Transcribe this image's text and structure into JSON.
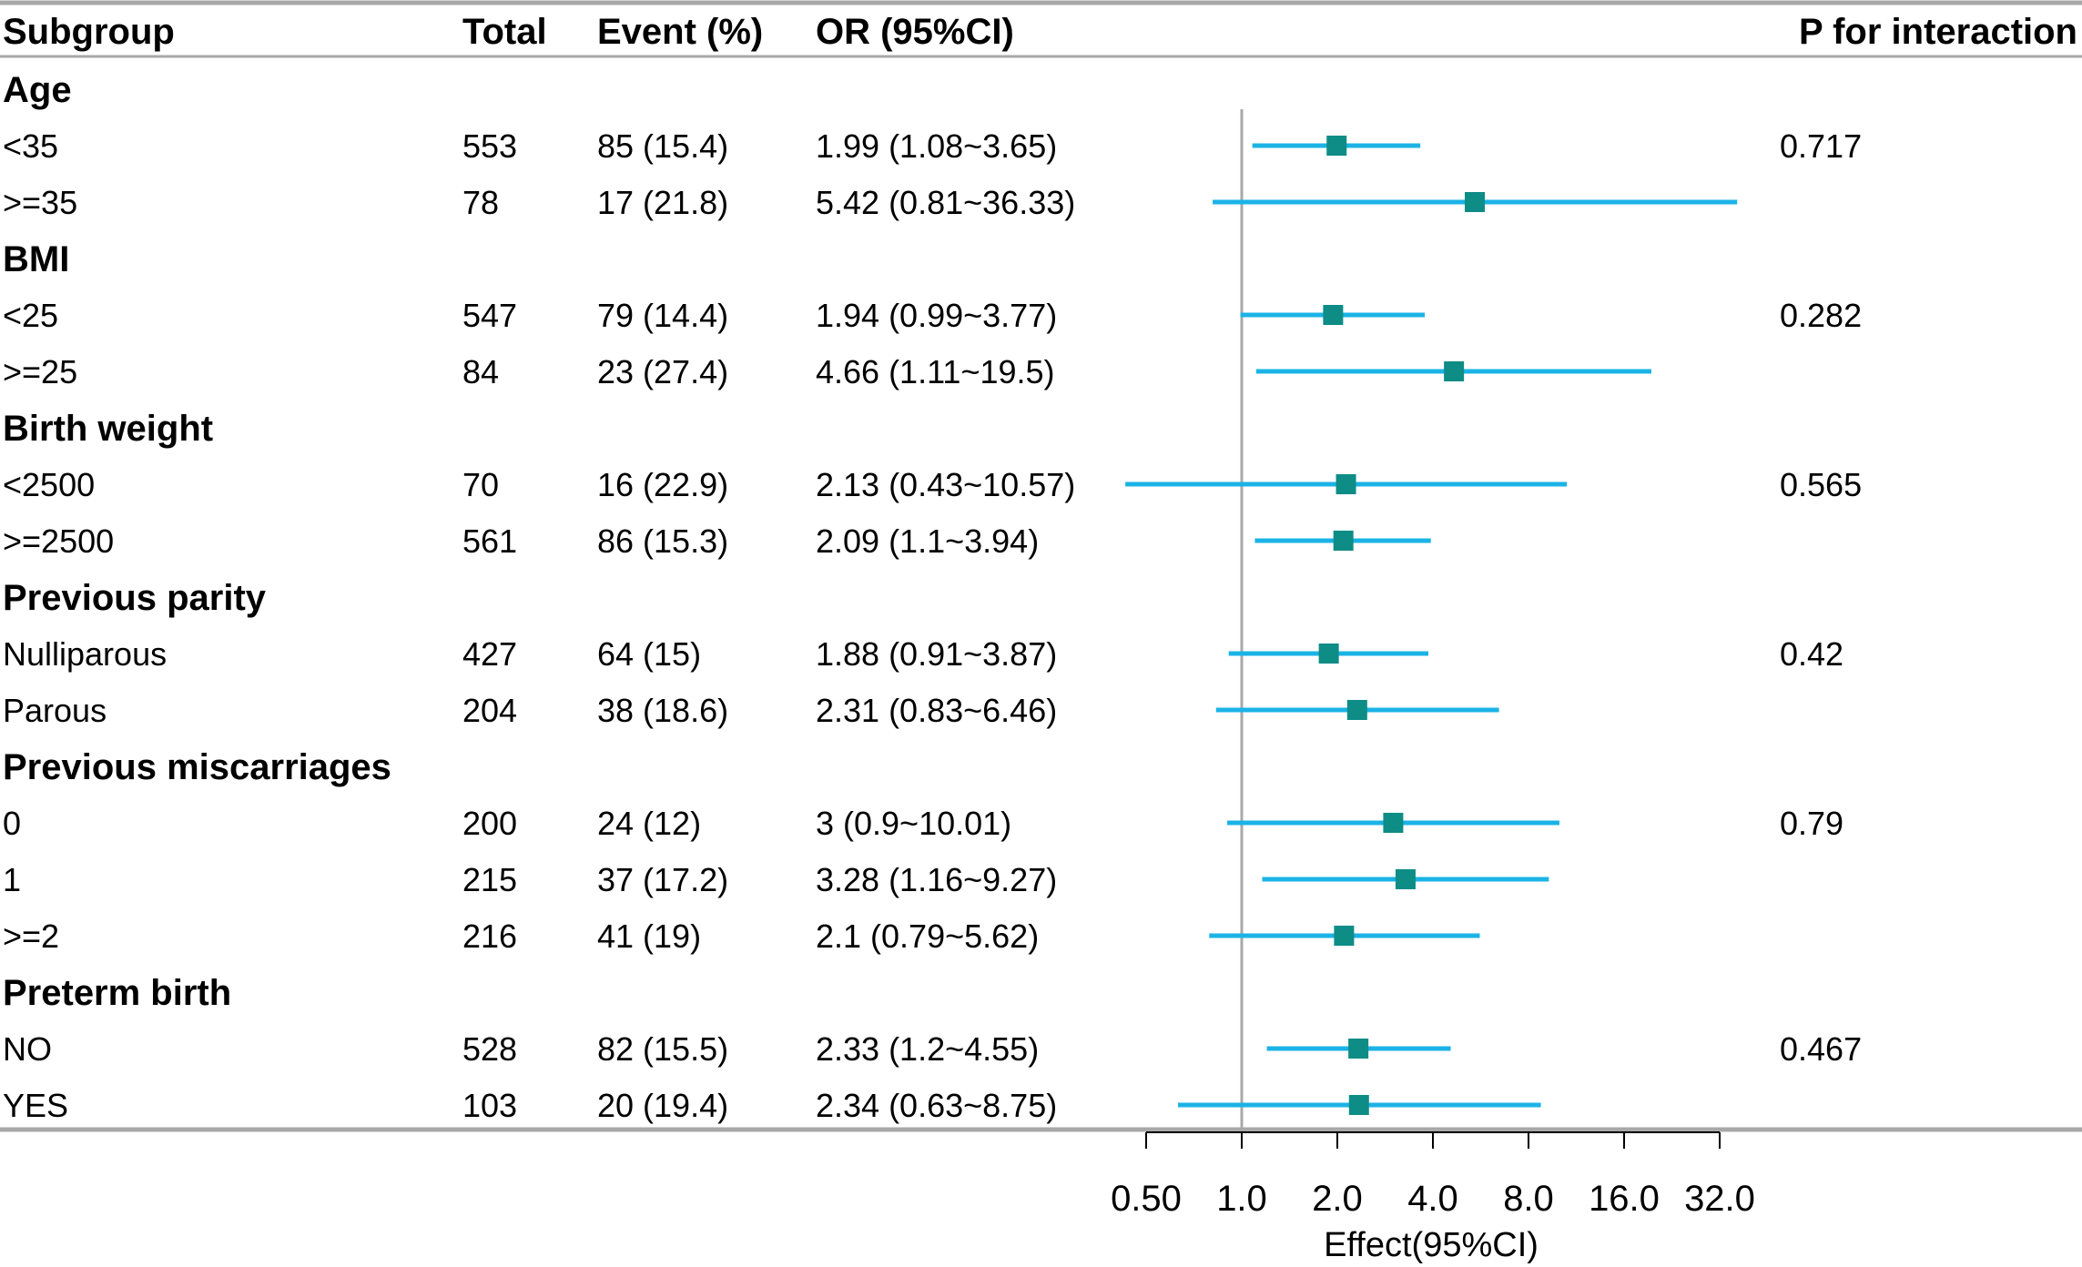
{
  "chart_data": {
    "type": "forest",
    "columns": [
      "Subgroup",
      "Total",
      "Event (%)",
      "OR (95%CI)",
      "P for interaction"
    ],
    "xlabel": "Effect(95%CI)",
    "x_scale": "log2",
    "xlim": [
      0.5,
      32
    ],
    "x_ticks": [
      0.5,
      1,
      2,
      4,
      8,
      16,
      32
    ],
    "x_tick_labels": [
      "0.50",
      "1.0",
      "2.0",
      "4.0",
      "8.0",
      "16.0",
      "32.0"
    ],
    "reference_line": 1,
    "colors": {
      "ci_line": "#1BB3E6",
      "point": "#0E8C86",
      "reference": "#A8A8A8",
      "rule": "#A8A8A8"
    },
    "groups": [
      {
        "label": "Age",
        "p_interaction": "0.717",
        "rows": [
          {
            "label": "<35",
            "total": "553",
            "event": "85 (15.4)",
            "or_text": "1.99 (1.08~3.65)",
            "or": 1.99,
            "lower": 1.08,
            "upper": 3.65
          },
          {
            "label": ">=35",
            "total": "78",
            "event": "17 (21.8)",
            "or_text": "5.42 (0.81~36.33)",
            "or": 5.42,
            "lower": 0.81,
            "upper": 36.33
          }
        ]
      },
      {
        "label": "BMI",
        "p_interaction": "0.282",
        "rows": [
          {
            "label": "<25",
            "total": "547",
            "event": "79 (14.4)",
            "or_text": "1.94 (0.99~3.77)",
            "or": 1.94,
            "lower": 0.99,
            "upper": 3.77
          },
          {
            "label": ">=25",
            "total": "84",
            "event": "23 (27.4)",
            "or_text": "4.66 (1.11~19.5)",
            "or": 4.66,
            "lower": 1.11,
            "upper": 19.5
          }
        ]
      },
      {
        "label": "Birth weight",
        "p_interaction": "0.565",
        "rows": [
          {
            "label": "<2500",
            "total": "70",
            "event": "16 (22.9)",
            "or_text": "2.13 (0.43~10.57)",
            "or": 2.13,
            "lower": 0.43,
            "upper": 10.57
          },
          {
            "label": ">=2500",
            "total": "561",
            "event": "86 (15.3)",
            "or_text": "2.09 (1.1~3.94)",
            "or": 2.09,
            "lower": 1.1,
            "upper": 3.94
          }
        ]
      },
      {
        "label": "Previous parity",
        "p_interaction": "0.42",
        "rows": [
          {
            "label": "Nulliparous",
            "total": "427",
            "event": "64 (15)",
            "or_text": "1.88 (0.91~3.87)",
            "or": 1.88,
            "lower": 0.91,
            "upper": 3.87
          },
          {
            "label": "Parous",
            "total": "204",
            "event": "38 (18.6)",
            "or_text": "2.31 (0.83~6.46)",
            "or": 2.31,
            "lower": 0.83,
            "upper": 6.46
          }
        ]
      },
      {
        "label": "Previous miscarriages",
        "p_interaction": "0.79",
        "rows": [
          {
            "label": "0",
            "total": "200",
            "event": "24 (12)",
            "or_text": "3 (0.9~10.01)",
            "or": 3,
            "lower": 0.9,
            "upper": 10.01
          },
          {
            "label": "1",
            "total": "215",
            "event": "37 (17.2)",
            "or_text": "3.28 (1.16~9.27)",
            "or": 3.28,
            "lower": 1.16,
            "upper": 9.27
          },
          {
            "label": ">=2",
            "total": "216",
            "event": "41 (19)",
            "or_text": "2.1 (0.79~5.62)",
            "or": 2.1,
            "lower": 0.79,
            "upper": 5.62
          }
        ]
      },
      {
        "label": "Preterm birth",
        "p_interaction": "0.467",
        "rows": [
          {
            "label": "NO",
            "total": "528",
            "event": "82 (15.5)",
            "or_text": "2.33 (1.2~4.55)",
            "or": 2.33,
            "lower": 1.2,
            "upper": 4.55
          },
          {
            "label": "YES",
            "total": "103",
            "event": "20 (19.4)",
            "or_text": "2.34 (0.63~8.75)",
            "or": 2.34,
            "lower": 0.63,
            "upper": 8.75
          }
        ]
      }
    ]
  }
}
